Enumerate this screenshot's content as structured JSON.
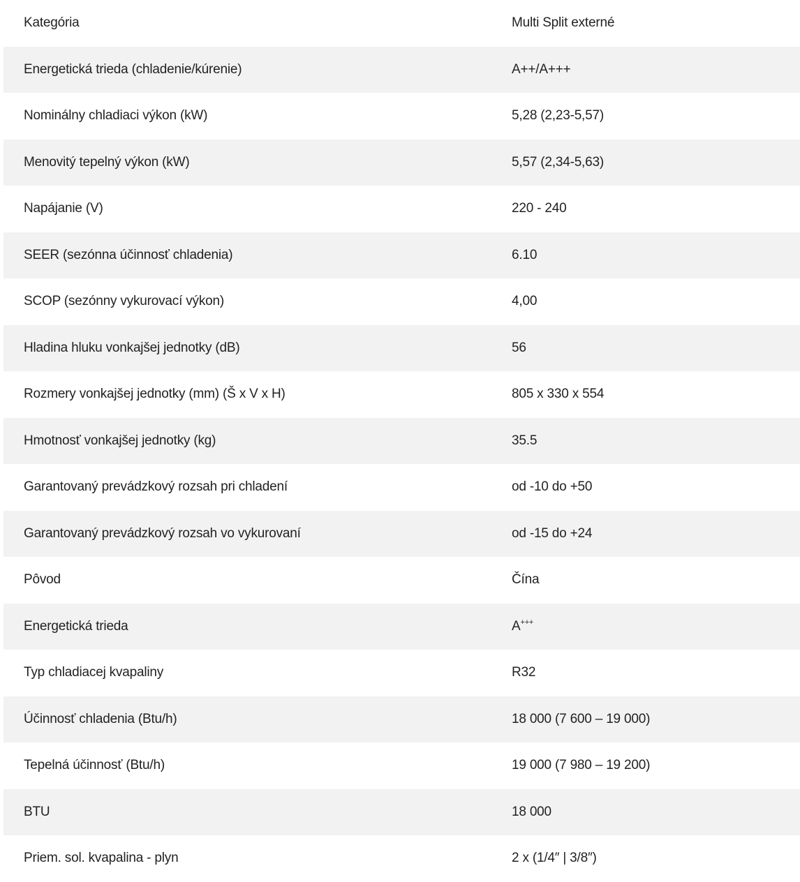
{
  "specs": [
    {
      "label": "Kategória",
      "value": "Multi Split externé"
    },
    {
      "label": "Energetická trieda (chladenie/kúrenie)",
      "value": "A++/A+++"
    },
    {
      "label": "Nominálny chladiaci výkon (kW)",
      "value": "5,28 (2,23-5,57)"
    },
    {
      "label": "Menovitý tepelný výkon (kW)",
      "value": "5,57 (2,34-5,63)"
    },
    {
      "label": "Napájanie (V)",
      "value": "220 - 240"
    },
    {
      "label": "SEER (sezónna účinnosť chladenia)",
      "value": "6.10"
    },
    {
      "label": "SCOP (sezónny vykurovací výkon)",
      "value": "4,00"
    },
    {
      "label": "Hladina hluku vonkajšej jednotky (dB)",
      "value": "56"
    },
    {
      "label": "Rozmery vonkajšej jednotky (mm) (Š x V x H)",
      "value": "805 x 330 x 554"
    },
    {
      "label": "Hmotnosť vonkajšej jednotky (kg)",
      "value": "35.5"
    },
    {
      "label": "Garantovaný prevádzkový rozsah pri chladení",
      "value": "od -10 do +50"
    },
    {
      "label": "Garantovaný prevádzkový rozsah vo vykurovaní",
      "value": "od -15 do +24"
    },
    {
      "label": "Pôvod",
      "value": "Čína"
    },
    {
      "label": "Energetická trieda",
      "value": "A",
      "value_sup": "+++"
    },
    {
      "label": "Typ chladiacej kvapaliny",
      "value": "R32"
    },
    {
      "label": "Účinnosť chladenia (Btu/h)",
      "value": "18 000 (7 600 – 19 000)"
    },
    {
      "label": "Tepelná účinnosť (Btu/h)",
      "value": "19 000 (7 980 – 19 200)"
    },
    {
      "label": "BTU",
      "value": "18 000"
    },
    {
      "label": "Priem. sol. kvapalina - plyn",
      "value": "2 x (1/4″ | 3/8″)"
    }
  ],
  "colors": {
    "row_shade": "#f2f2f2",
    "text": "#222222",
    "background": "#ffffff"
  }
}
